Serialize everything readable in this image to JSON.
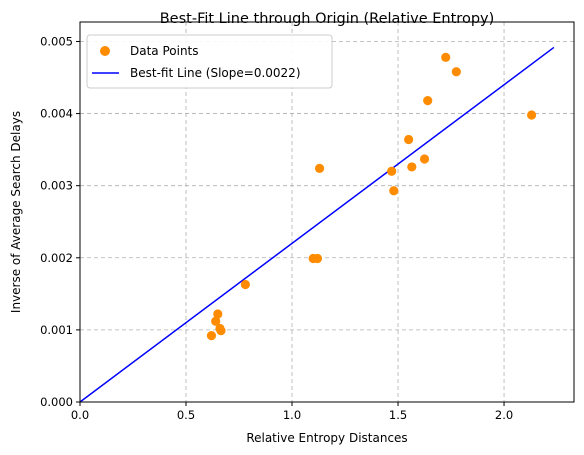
{
  "chart_data": {
    "type": "scatter",
    "title": "Best-Fit Line through Origin (Relative Entropy)",
    "xlabel": "Relative Entropy Distances",
    "ylabel": "Inverse of Average Search Delays",
    "xlim": [
      0,
      2.33
    ],
    "ylim": [
      0,
      0.00527
    ],
    "xticks": [
      0.0,
      0.5,
      1.0,
      1.5,
      2.0
    ],
    "xtick_labels": [
      "0.0",
      "0.5",
      "1.0",
      "1.5",
      "2.0"
    ],
    "yticks": [
      0.0,
      0.001,
      0.002,
      0.003,
      0.004,
      0.005
    ],
    "ytick_labels": [
      "0.000",
      "0.001",
      "0.002",
      "0.003",
      "0.004",
      "0.005"
    ],
    "grid": true,
    "legend_position": "top-left",
    "series": [
      {
        "name": "Data Points",
        "kind": "scatter",
        "color": "#ff8c00",
        "points": [
          {
            "x": 0.62,
            "y": 0.00092
          },
          {
            "x": 0.64,
            "y": 0.00112
          },
          {
            "x": 0.65,
            "y": 0.00122
          },
          {
            "x": 0.66,
            "y": 0.00102
          },
          {
            "x": 0.665,
            "y": 0.00099
          },
          {
            "x": 0.78,
            "y": 0.00163
          },
          {
            "x": 1.1,
            "y": 0.00199
          },
          {
            "x": 1.12,
            "y": 0.00199
          },
          {
            "x": 1.13,
            "y": 0.00324
          },
          {
            "x": 1.47,
            "y": 0.0032
          },
          {
            "x": 1.48,
            "y": 0.00293
          },
          {
            "x": 1.55,
            "y": 0.00364
          },
          {
            "x": 1.565,
            "y": 0.00326
          },
          {
            "x": 1.625,
            "y": 0.00337
          },
          {
            "x": 1.64,
            "y": 0.00418
          },
          {
            "x": 1.725,
            "y": 0.00478
          },
          {
            "x": 1.775,
            "y": 0.00458
          },
          {
            "x": 2.13,
            "y": 0.00398
          }
        ]
      },
      {
        "name": "Best-fit Line (Slope=0.0022)",
        "kind": "line",
        "color": "#0000ff",
        "slope": 0.0022,
        "x_range": [
          0,
          2.235
        ]
      }
    ]
  }
}
